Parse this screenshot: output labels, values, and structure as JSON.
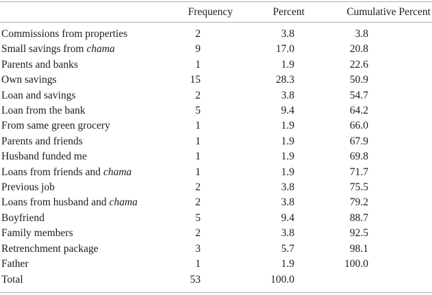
{
  "table": {
    "columns": [
      "",
      "Frequency",
      "Percent",
      "Cumulative Percent"
    ],
    "rows": [
      {
        "label": "Commissions from properties",
        "italic": "",
        "frequency": "2",
        "percent": "3.8",
        "cumulative": "3.8"
      },
      {
        "label": "Small savings from ",
        "italic": "chama",
        "frequency": "9",
        "percent": "17.0",
        "cumulative": "20.8"
      },
      {
        "label": "Parents and banks",
        "italic": "",
        "frequency": "1",
        "percent": "1.9",
        "cumulative": "22.6"
      },
      {
        "label": "Own savings",
        "italic": "",
        "frequency": "15",
        "percent": "28.3",
        "cumulative": "50.9"
      },
      {
        "label": "Loan and savings",
        "italic": "",
        "frequency": "2",
        "percent": "3.8",
        "cumulative": "54.7"
      },
      {
        "label": "Loan from the bank",
        "italic": "",
        "frequency": "5",
        "percent": "9.4",
        "cumulative": "64.2"
      },
      {
        "label": "From same green grocery",
        "italic": "",
        "frequency": "1",
        "percent": "1.9",
        "cumulative": "66.0"
      },
      {
        "label": "Parents and friends",
        "italic": "",
        "frequency": "1",
        "percent": "1.9",
        "cumulative": "67.9"
      },
      {
        "label": "Husband funded me",
        "italic": "",
        "frequency": "1",
        "percent": "1.9",
        "cumulative": "69.8"
      },
      {
        "label": "Loans from friends and ",
        "italic": "chama",
        "frequency": "1",
        "percent": "1.9",
        "cumulative": "71.7"
      },
      {
        "label": "Previous job",
        "italic": "",
        "frequency": "2",
        "percent": "3.8",
        "cumulative": "75.5"
      },
      {
        "label": "Loans from husband and ",
        "italic": "chama",
        "frequency": "2",
        "percent": "3.8",
        "cumulative": "79.2"
      },
      {
        "label": "Boyfriend",
        "italic": "",
        "frequency": "5",
        "percent": "9.4",
        "cumulative": "88.7"
      },
      {
        "label": "Family members",
        "italic": "",
        "frequency": "2",
        "percent": "3.8",
        "cumulative": "92.5"
      },
      {
        "label": "Retrenchment package",
        "italic": "",
        "frequency": "3",
        "percent": "5.7",
        "cumulative": "98.1"
      },
      {
        "label": "Father",
        "italic": "",
        "frequency": "1",
        "percent": "1.9",
        "cumulative": "100.0"
      },
      {
        "label": "Total",
        "italic": "",
        "frequency": "53",
        "percent": "100.0",
        "cumulative": ""
      }
    ]
  },
  "colors": {
    "rule": "#b0b0b0",
    "text": "#1c1c1c",
    "background": "#ffffff"
  }
}
